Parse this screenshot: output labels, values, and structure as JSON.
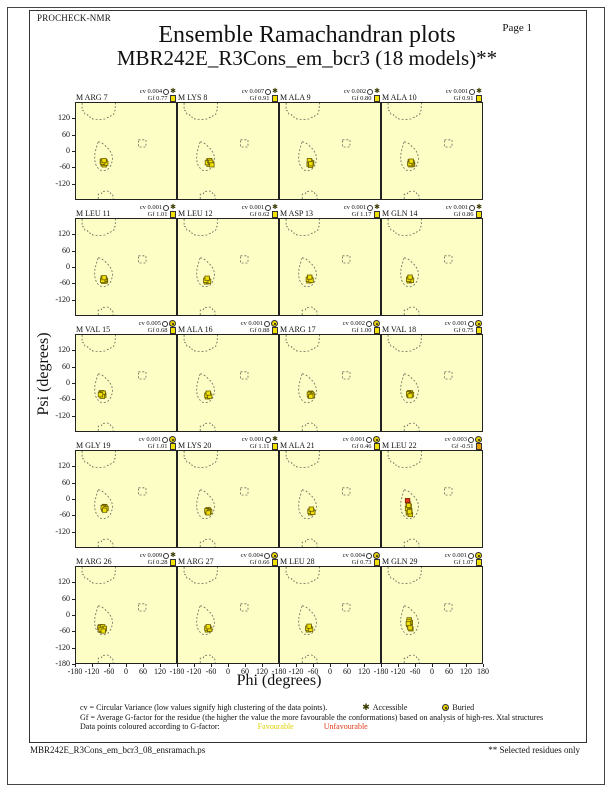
{
  "header": {
    "brand": "PROCHECK-NMR",
    "page": "Page  1",
    "title": "Ensemble Ramachandran plots",
    "subtitle": "MBR242E_R3Cons_em_bcr3 (18 models)**"
  },
  "axes": {
    "x_label": "Phi (degrees)",
    "y_label": "Psi (degrees)",
    "x_ticks": [
      -180,
      -120,
      -60,
      0,
      60,
      120
    ],
    "x_end_tick": 180,
    "y_ticks": [
      120,
      60,
      0,
      -60,
      -120
    ],
    "y_bottom_tick": -180
  },
  "colors": {
    "plot_bg": "#FDFDC6",
    "favourable": "#F0E000",
    "unfavourable": "#E03818",
    "point_border": "#6B5E00",
    "favourable_text": "#E0D000",
    "unfavourable_text": "#E03818"
  },
  "legend": {
    "line1": "cv = Circular Variance (low values signify high clustering of the data points).",
    "accessible_label": "Accessible",
    "buried_label": "Buried",
    "line2": "Gf = Average G-factor for the residue (the higher the value the more favourable the conformations)  based on analysis of high-res. Xtal structures",
    "line3": "Data points coloured according to G-factor:",
    "favourable_label": "Favourable",
    "unfavourable_label": "Unfavourable"
  },
  "footer": {
    "left": "MBR242E_R3Cons_em_bcr3_08_ensramach.ps",
    "right": "** Selected residues only"
  },
  "chart_data": {
    "type": "scatter",
    "title": "Ensemble Ramachandran plots",
    "subtitle": "MBR242E_R3Cons_em_bcr3 (18 models)**",
    "xlabel": "Phi (degrees)",
    "ylabel": "Psi (degrees)",
    "xlim": [
      -180,
      180
    ],
    "ylim": [
      -180,
      180
    ],
    "grid": false,
    "subplots": [
      {
        "label": "M ARG 7",
        "cv": "0.004",
        "gf": "0.77",
        "exposure": "accessible",
        "gf_box_color": "#F2E100",
        "points": [
          [
            -85,
            -38
          ],
          [
            -80,
            -44
          ],
          [
            -76,
            -40
          ],
          [
            -82,
            -48
          ],
          [
            -78,
            -52
          ],
          [
            -73,
            -46
          ],
          [
            -84,
            -42
          ],
          [
            -79,
            -36
          ]
        ],
        "unfavourable_points": []
      },
      {
        "label": "M LYS 8",
        "cv": "0.007",
        "gf": "0.91",
        "exposure": "accessible",
        "gf_box_color": "#F2E100",
        "points": [
          [
            -70,
            -38
          ],
          [
            -64,
            -44
          ],
          [
            -60,
            -48
          ],
          [
            -68,
            -50
          ],
          [
            -74,
            -44
          ],
          [
            -66,
            -36
          ],
          [
            -62,
            -42
          ],
          [
            -58,
            -52
          ]
        ],
        "unfavourable_points": []
      },
      {
        "label": "M ALA 9",
        "cv": "0.002",
        "gf": "0.80",
        "exposure": "accessible",
        "gf_box_color": "#F2E100",
        "points": [
          [
            -72,
            -40
          ],
          [
            -68,
            -46
          ],
          [
            -75,
            -50
          ],
          [
            -70,
            -54
          ],
          [
            -66,
            -44
          ],
          [
            -74,
            -36
          ],
          [
            -69,
            -48
          ]
        ],
        "unfavourable_points": []
      },
      {
        "label": "M ALA 10",
        "cv": "0.001",
        "gf": "0.91",
        "exposure": "accessible",
        "gf_box_color": "#F2E100",
        "points": [
          [
            -78,
            -40
          ],
          [
            -74,
            -46
          ],
          [
            -70,
            -50
          ],
          [
            -76,
            -52
          ],
          [
            -72,
            -44
          ],
          [
            -80,
            -48
          ],
          [
            -75,
            -38
          ]
        ],
        "unfavourable_points": []
      },
      {
        "label": "M LEU 11",
        "cv": "0.001",
        "gf": "1.01",
        "exposure": "accessible",
        "gf_box_color": "#F2E100",
        "points": [
          [
            -82,
            -42
          ],
          [
            -78,
            -48
          ],
          [
            -74,
            -52
          ],
          [
            -80,
            -54
          ],
          [
            -76,
            -46
          ],
          [
            -84,
            -50
          ],
          [
            -79,
            -40
          ]
        ],
        "unfavourable_points": []
      },
      {
        "label": "M LEU 12",
        "cv": "0.001",
        "gf": "0.62",
        "exposure": "accessible",
        "gf_box_color": "#F2E100",
        "points": [
          [
            -76,
            -46
          ],
          [
            -72,
            -52
          ],
          [
            -78,
            -56
          ],
          [
            -74,
            -48
          ],
          [
            -70,
            -54
          ],
          [
            -80,
            -50
          ],
          [
            -75,
            -42
          ]
        ],
        "unfavourable_points": []
      },
      {
        "label": "M ASP 13",
        "cv": "0.001",
        "gf": "1.17",
        "exposure": "accessible",
        "gf_box_color": "#F2E100",
        "points": [
          [
            -74,
            -42
          ],
          [
            -70,
            -48
          ],
          [
            -76,
            -52
          ],
          [
            -72,
            -44
          ],
          [
            -78,
            -46
          ],
          [
            -68,
            -50
          ],
          [
            -73,
            -38
          ]
        ],
        "unfavourable_points": []
      },
      {
        "label": "M GLN 14",
        "cv": "0.001",
        "gf": "0.86",
        "exposure": "accessible",
        "gf_box_color": "#F2E100",
        "points": [
          [
            -80,
            -42
          ],
          [
            -76,
            -48
          ],
          [
            -82,
            -52
          ],
          [
            -78,
            -44
          ],
          [
            -74,
            -50
          ],
          [
            -84,
            -46
          ],
          [
            -79,
            -38
          ]
        ],
        "unfavourable_points": []
      },
      {
        "label": "M VAL 15",
        "cv": "0.005",
        "gf": "0.68",
        "exposure": "buried",
        "gf_box_color": "#F2E100",
        "points": [
          [
            -88,
            -36
          ],
          [
            -84,
            -42
          ],
          [
            -80,
            -46
          ],
          [
            -86,
            -48
          ],
          [
            -90,
            -40
          ],
          [
            -82,
            -38
          ],
          [
            -85,
            -50
          ],
          [
            -92,
            -44
          ]
        ],
        "unfavourable_points": []
      },
      {
        "label": "M ALA 16",
        "cv": "0.001",
        "gf": "0.88",
        "exposure": "buried",
        "gf_box_color": "#F2E100",
        "points": [
          [
            -72,
            -42
          ],
          [
            -68,
            -48
          ],
          [
            -74,
            -52
          ],
          [
            -70,
            -44
          ],
          [
            -76,
            -46
          ],
          [
            -66,
            -50
          ],
          [
            -71,
            -38
          ]
        ],
        "unfavourable_points": []
      },
      {
        "label": "M ARG 17",
        "cv": "0.002",
        "gf": "1.00",
        "exposure": "buried",
        "gf_box_color": "#F2E100",
        "points": [
          [
            -70,
            -38
          ],
          [
            -66,
            -44
          ],
          [
            -72,
            -48
          ],
          [
            -68,
            -40
          ],
          [
            -74,
            -42
          ],
          [
            -64,
            -46
          ],
          [
            -69,
            -50
          ]
        ],
        "unfavourable_points": []
      },
      {
        "label": "M VAL 18",
        "cv": "0.001",
        "gf": "0.75",
        "exposure": "buried",
        "gf_box_color": "#F2E100",
        "points": [
          [
            -80,
            -36
          ],
          [
            -76,
            -42
          ],
          [
            -82,
            -46
          ],
          [
            -78,
            -38
          ],
          [
            -84,
            -40
          ],
          [
            -74,
            -44
          ],
          [
            -79,
            -48
          ]
        ],
        "unfavourable_points": []
      },
      {
        "label": "M GLY 19",
        "cv": "0.001",
        "gf": "1.01",
        "exposure": "buried",
        "gf_box_color": "#F2E100",
        "points": [
          [
            -78,
            -28
          ],
          [
            -74,
            -34
          ],
          [
            -80,
            -38
          ],
          [
            -76,
            -30
          ],
          [
            -82,
            -32
          ],
          [
            -72,
            -36
          ],
          [
            -77,
            -42
          ]
        ],
        "unfavourable_points": []
      },
      {
        "label": "M LYS 20",
        "cv": "0.001",
        "gf": "1.11",
        "exposure": "accessible",
        "gf_box_color": "#F2E100",
        "points": [
          [
            -72,
            -40
          ],
          [
            -68,
            -46
          ],
          [
            -74,
            -50
          ],
          [
            -70,
            -42
          ],
          [
            -76,
            -44
          ],
          [
            -66,
            -48
          ],
          [
            -71,
            -52
          ]
        ],
        "unfavourable_points": []
      },
      {
        "label": "M ALA 21",
        "cv": "0.001",
        "gf": "0.46",
        "exposure": "buried",
        "gf_box_color": "#F2E100",
        "points": [
          [
            -68,
            -42
          ],
          [
            -64,
            -48
          ],
          [
            -70,
            -52
          ],
          [
            -66,
            -44
          ],
          [
            -72,
            -46
          ],
          [
            -62,
            -50
          ],
          [
            -67,
            -38
          ]
        ],
        "unfavourable_points": []
      },
      {
        "label": "M LEU 22",
        "cv": "0.003",
        "gf": "-0.51",
        "exposure": "buried",
        "gf_box_color": "#E8A000",
        "points": [
          [
            -86,
            -18
          ],
          [
            -82,
            -28
          ],
          [
            -88,
            -36
          ],
          [
            -80,
            -44
          ],
          [
            -85,
            -52
          ],
          [
            -78,
            -58
          ],
          [
            -84,
            -24
          ],
          [
            -81,
            -48
          ]
        ],
        "unfavourable_points": [
          [
            -88,
            -6
          ]
        ]
      },
      {
        "label": "M ARG 26",
        "cv": "0.009",
        "gf": "0.28",
        "exposure": "accessible",
        "gf_box_color": "#F2E100",
        "points": [
          [
            -92,
            -44
          ],
          [
            -86,
            -50
          ],
          [
            -80,
            -54
          ],
          [
            -88,
            -58
          ],
          [
            -94,
            -48
          ],
          [
            -84,
            -44
          ],
          [
            -78,
            -50
          ],
          [
            -90,
            -54
          ],
          [
            -82,
            -60
          ]
        ],
        "unfavourable_points": []
      },
      {
        "label": "M ARG 27",
        "cv": "0.004",
        "gf": "0.66",
        "exposure": "buried",
        "gf_box_color": "#F2E100",
        "points": [
          [
            -72,
            -46
          ],
          [
            -68,
            -52
          ],
          [
            -74,
            -56
          ],
          [
            -70,
            -48
          ],
          [
            -76,
            -50
          ],
          [
            -66,
            -54
          ],
          [
            -71,
            -44
          ]
        ],
        "unfavourable_points": []
      },
      {
        "label": "M LEU 28",
        "cv": "0.004",
        "gf": "0.73",
        "exposure": "buried",
        "gf_box_color": "#F2E100",
        "points": [
          [
            -76,
            -46
          ],
          [
            -72,
            -52
          ],
          [
            -78,
            -56
          ],
          [
            -74,
            -48
          ],
          [
            -80,
            -50
          ],
          [
            -70,
            -54
          ],
          [
            -75,
            -42
          ]
        ],
        "unfavourable_points": []
      },
      {
        "label": "M GLN 29",
        "cv": "0.001",
        "gf": "1.07",
        "exposure": "buried",
        "gf_box_color": "#F2E100",
        "points": [
          [
            -82,
            -18
          ],
          [
            -78,
            -28
          ],
          [
            -84,
            -36
          ],
          [
            -80,
            -44
          ],
          [
            -76,
            -52
          ],
          [
            -83,
            -24
          ],
          [
            -79,
            -48
          ],
          [
            -85,
            -32
          ]
        ],
        "unfavourable_points": []
      }
    ]
  }
}
